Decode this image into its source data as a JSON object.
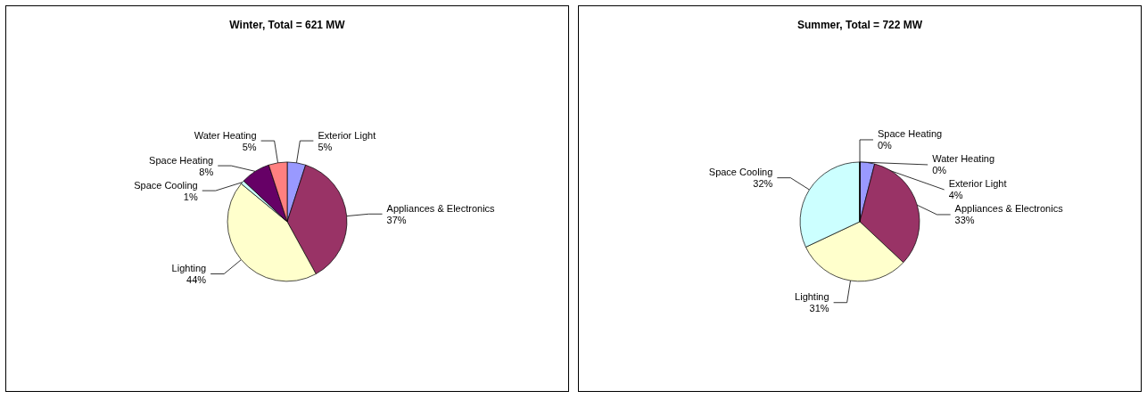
{
  "chart_data": [
    {
      "type": "pie",
      "title": "Winter, Total = 621 MW",
      "categories": [
        "Exterior Light",
        "Appliances & Electronics",
        "Lighting",
        "Space Cooling",
        "Space Heating",
        "Water Heating"
      ],
      "values": [
        5,
        37,
        44,
        1,
        8,
        5
      ],
      "value_labels": [
        "5%",
        "37%",
        "44%",
        "1%",
        "8%",
        "5%"
      ],
      "colors": [
        "#9999ff",
        "#993366",
        "#ffffcc",
        "#ccffff",
        "#660066",
        "#ff8080"
      ]
    },
    {
      "type": "pie",
      "title": "Summer, Total = 722 MW",
      "categories": [
        "Exterior Light",
        "Appliances & Electronics",
        "Lighting",
        "Space Cooling",
        "Space Heating",
        "Water Heating"
      ],
      "values": [
        4,
        33,
        31,
        32,
        0,
        0
      ],
      "value_labels": [
        "4%",
        "33%",
        "31%",
        "32%",
        "0%",
        "0%"
      ],
      "colors": [
        "#9999ff",
        "#993366",
        "#ffffcc",
        "#ccffff",
        "#660066",
        "#ff8080"
      ]
    }
  ]
}
